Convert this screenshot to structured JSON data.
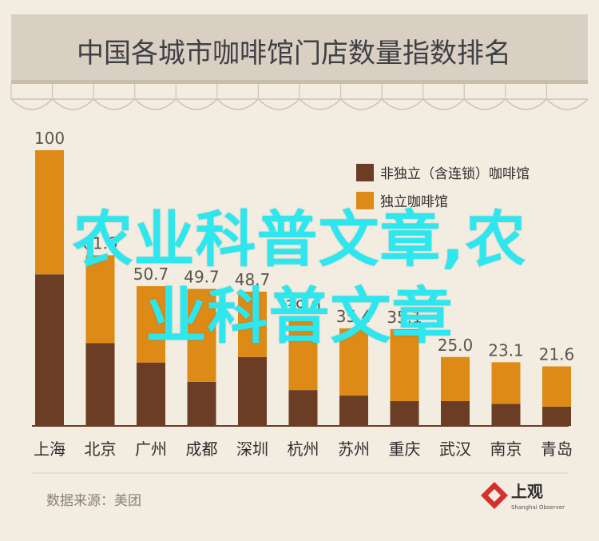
{
  "chart_data": {
    "type": "bar",
    "stacked": true,
    "title": "中国各城市咖啡馆门店数量指数排名",
    "categories": [
      "上海",
      "北京",
      "广州",
      "成都",
      "深圳",
      "杭州",
      "苏州",
      "重庆",
      "武汉",
      "南京",
      "青岛"
    ],
    "totals": [
      100,
      61.9,
      50.7,
      49.7,
      48.7,
      39.0,
      35.4,
      35.1,
      25.0,
      23.1,
      21.6
    ],
    "total_labels": [
      "100",
      "61.9",
      "50.7",
      "49.7",
      "48.7",
      "39.0",
      "35.4",
      "35.1",
      "25.0",
      "23.1",
      "21.6"
    ],
    "series": [
      {
        "name": "非独立（含连锁）咖啡馆",
        "color": "#6b3d24",
        "values": [
          55,
          30,
          23,
          16,
          25,
          13,
          11,
          9,
          9,
          8,
          7
        ]
      },
      {
        "name": "独立咖啡馆",
        "color": "#dd8a16",
        "values": [
          45,
          31.9,
          27.7,
          33.7,
          23.7,
          26.0,
          24.4,
          26.1,
          16.0,
          15.1,
          14.6
        ]
      }
    ],
    "ylim": [
      0,
      100
    ],
    "legend": "top-right",
    "source": "数据来源：美团",
    "logo_text": "上观",
    "logo_subtext": "Shanghai Observer"
  },
  "colors": {
    "background": "#f3ece0",
    "header_bg": "#d9cfc2",
    "header_text": "#3f3f46",
    "non_independent": "#6b3d24",
    "independent": "#dd8a16",
    "logo_red": "#d3312b",
    "overlay_text": "#2ee6ee"
  },
  "overlay": {
    "line1": "农业科普文章,农",
    "line2": "业科普文章"
  }
}
